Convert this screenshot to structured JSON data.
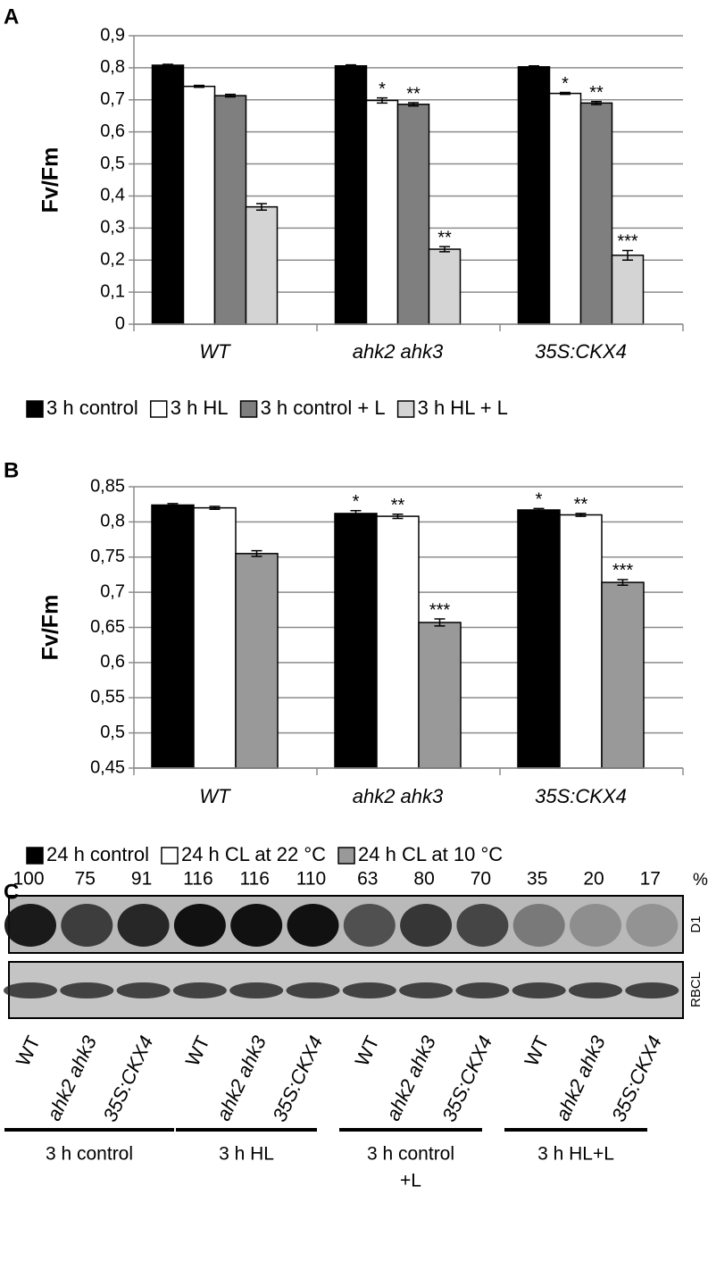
{
  "chart_data": [
    {
      "type": "bar",
      "panel": "A",
      "ylabel": "Fv/Fm",
      "categories": [
        "WT",
        "ahk2 ahk3",
        "35S:CKX4"
      ],
      "series": [
        {
          "name": "3 h control",
          "color": "#000000",
          "values": [
            0.808,
            0.806,
            0.803
          ],
          "errors": [
            0.003,
            0.003,
            0.003
          ]
        },
        {
          "name": "3 h HL",
          "color": "#ffffff",
          "values": [
            0.742,
            0.698,
            0.72
          ],
          "errors": [
            0.003,
            0.008,
            0.003
          ],
          "stars": [
            null,
            "*",
            "*"
          ]
        },
        {
          "name": "3 h control + L",
          "color": "#7f7f7f",
          "values": [
            0.713,
            0.686,
            0.69
          ],
          "errors": [
            0.004,
            0.005,
            0.005
          ],
          "stars": [
            null,
            "**",
            "**"
          ]
        },
        {
          "name": "3 h HL + L",
          "color": "#d4d4d4",
          "values": [
            0.366,
            0.234,
            0.215
          ],
          "errors": [
            0.01,
            0.008,
            0.015
          ],
          "stars": [
            null,
            "**",
            "***"
          ]
        }
      ],
      "ylim": [
        0,
        0.9
      ],
      "yticks": [
        0,
        {
          "value": 0.1,
          "label": "0,1"
        },
        {
          "value": 0.2,
          "label": "0,2"
        },
        {
          "value": 0.3,
          "label": "0,3"
        },
        {
          "value": 0.4,
          "label": "0,4"
        },
        {
          "value": 0.5,
          "label": "0,5"
        },
        {
          "value": 0.6,
          "label": "0,6"
        },
        {
          "value": 0.7,
          "label": "0,7"
        },
        {
          "value": 0.8,
          "label": "0,8"
        },
        {
          "value": 0.9,
          "label": "0,9"
        }
      ],
      "grid": true
    },
    {
      "type": "bar",
      "panel": "B",
      "ylabel": "Fv/Fm",
      "categories": [
        "WT",
        "ahk2 ahk3",
        "35S:CKX4"
      ],
      "series": [
        {
          "name": "24 h control",
          "color": "#000000",
          "values": [
            0.824,
            0.812,
            0.817
          ],
          "errors": [
            0.002,
            0.004,
            0.002
          ],
          "stars": [
            null,
            "*",
            "*"
          ]
        },
        {
          "name": "24 h CL at 22 °C",
          "color": "#ffffff",
          "values": [
            0.82,
            0.808,
            0.81
          ],
          "errors": [
            0.002,
            0.003,
            0.002
          ],
          "stars": [
            null,
            "**",
            "**"
          ]
        },
        {
          "name": "24 h CL at 10 °C",
          "color": "#999999",
          "values": [
            0.755,
            0.657,
            0.714
          ],
          "errors": [
            0.004,
            0.005,
            0.004
          ],
          "stars": [
            null,
            "***",
            "***"
          ]
        }
      ],
      "ylim": [
        0.45,
        0.85
      ],
      "yticks": [
        {
          "value": 0.45,
          "label": "0,45"
        },
        {
          "value": 0.5,
          "label": "0,5"
        },
        {
          "value": 0.55,
          "label": "0,55"
        },
        {
          "value": 0.6,
          "label": "0,6"
        },
        {
          "value": 0.65,
          "label": "0,65"
        },
        {
          "value": 0.7,
          "label": "0,7"
        },
        {
          "value": 0.75,
          "label": "0,75"
        },
        {
          "value": 0.8,
          "label": "0,8"
        },
        {
          "value": 0.85,
          "label": "0,85"
        }
      ],
      "grid": true
    }
  ],
  "blot": {
    "panel": "C",
    "percentages": [
      100,
      75,
      91,
      116,
      116,
      110,
      63,
      80,
      70,
      35,
      20,
      17
    ],
    "unit": "%",
    "bands": [
      "D1",
      "RBCL"
    ],
    "lanes": [
      "WT",
      "ahk2 ahk3",
      "35S:CKX4",
      "WT",
      "ahk2 ahk3",
      "35S:CKX4",
      "WT",
      "ahk2 ahk3",
      "35S:CKX4",
      "WT",
      "ahk2 ahk3",
      "35S:CKX4"
    ],
    "groups": [
      [
        "3 h control"
      ],
      [
        "3 h HL"
      ],
      [
        "3 h control",
        "+L"
      ],
      [
        "3 h HL+L"
      ]
    ]
  }
}
